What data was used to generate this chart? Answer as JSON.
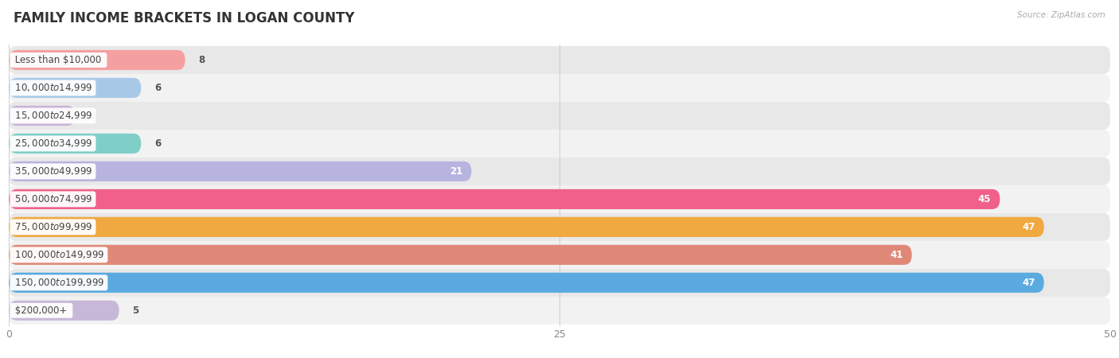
{
  "title": "FAMILY INCOME BRACKETS IN LOGAN COUNTY",
  "source": "Source: ZipAtlas.com",
  "categories": [
    "Less than $10,000",
    "$10,000 to $14,999",
    "$15,000 to $24,999",
    "$25,000 to $34,999",
    "$35,000 to $49,999",
    "$50,000 to $74,999",
    "$75,000 to $99,999",
    "$100,000 to $149,999",
    "$150,000 to $199,999",
    "$200,000+"
  ],
  "values": [
    8,
    6,
    3,
    6,
    21,
    45,
    47,
    41,
    47,
    5
  ],
  "bar_colors": [
    "#F4A0A0",
    "#A8C8E8",
    "#C8B4D8",
    "#80CEC8",
    "#B8B4E0",
    "#F0608A",
    "#F0A840",
    "#E08878",
    "#5AAAE0",
    "#C8B8D8"
  ],
  "bg_row_colors_odd": "#F2F2F2",
  "bg_row_colors_even": "#E8E8E8",
  "xlim": [
    0,
    50
  ],
  "xticks": [
    0,
    25,
    50
  ],
  "title_fontsize": 12,
  "label_fontsize": 8.5,
  "value_fontsize": 8.5,
  "background_color": "#FFFFFF",
  "grid_color": "#D0D0D0"
}
